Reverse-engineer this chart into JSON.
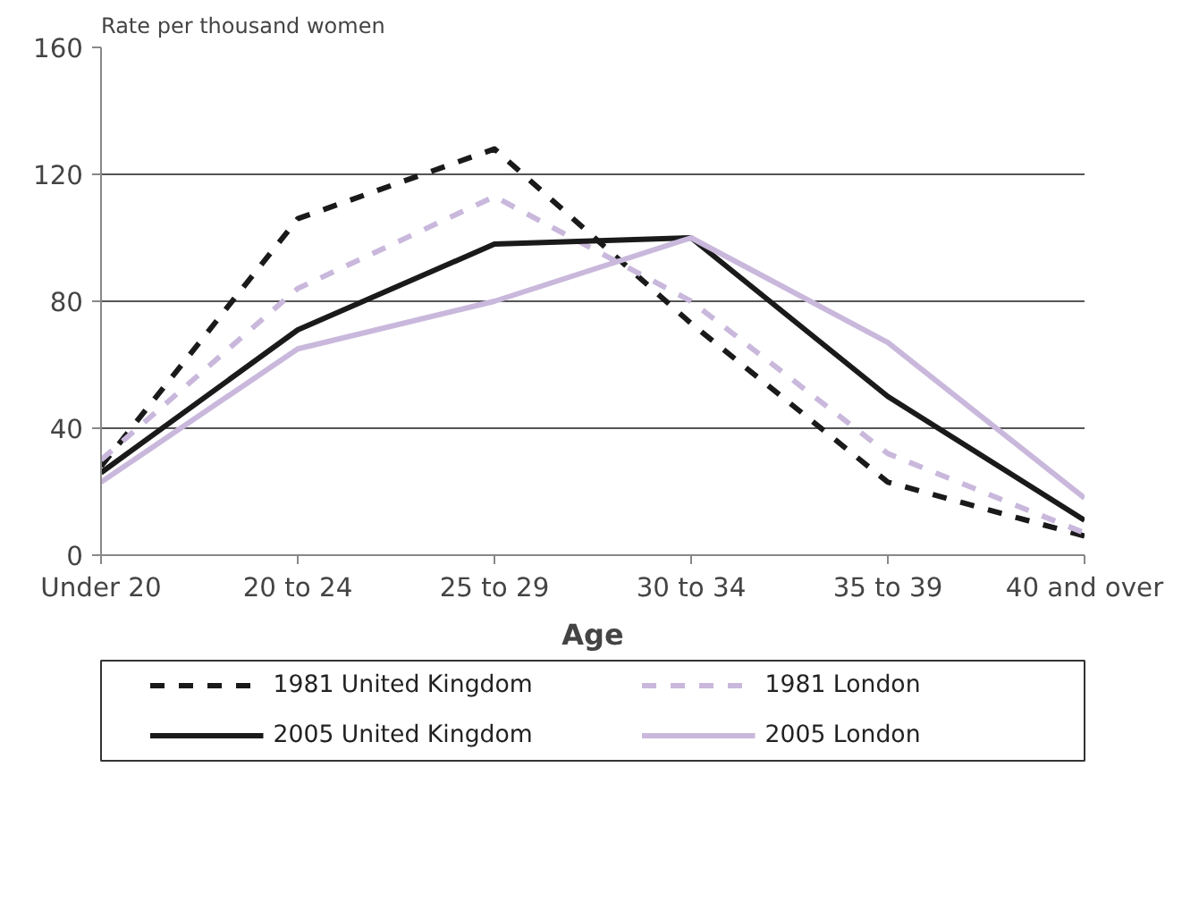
{
  "chart_data": {
    "type": "line",
    "ylabel": "Rate per thousand women",
    "xlabel": "Age",
    "categories": [
      "Under 20",
      "20 to 24",
      "25 to 29",
      "30 to 34",
      "35 to 39",
      "40 and over"
    ],
    "series": [
      {
        "name": "1981 United Kingdom",
        "color": "#1a1a1a",
        "line_style": "dashed",
        "values": [
          28,
          106,
          128,
          73,
          23,
          6
        ]
      },
      {
        "name": "1981 London",
        "color": "#c9b8dc",
        "line_style": "dashed",
        "values": [
          30,
          84,
          113,
          80,
          32,
          7
        ]
      },
      {
        "name": "2005 United Kingdom",
        "color": "#1a1a1a",
        "line_style": "solid",
        "values": [
          26,
          71,
          98,
          100,
          50,
          11
        ]
      },
      {
        "name": "2005 London",
        "color": "#c9b8dc",
        "line_style": "solid",
        "values": [
          23,
          65,
          80,
          100,
          67,
          18
        ]
      }
    ],
    "ylim": [
      0,
      160
    ],
    "yticks": [
      0,
      40,
      80,
      120,
      160
    ],
    "grid": "y",
    "legend": "bottom"
  }
}
